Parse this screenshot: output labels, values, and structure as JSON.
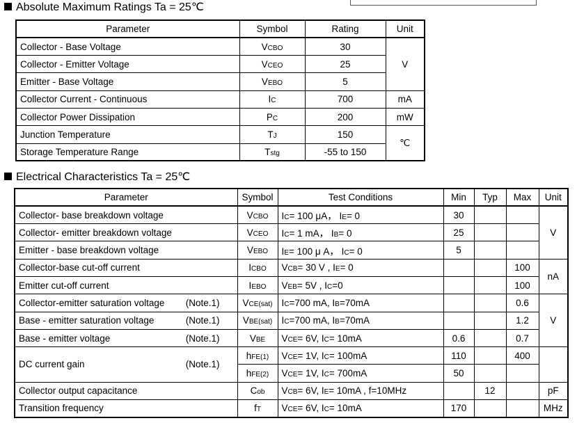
{
  "abs_max": {
    "title": "Absolute Maximum Ratings Ta = 25℃",
    "headers": [
      "Parameter",
      "Symbol",
      "Rating",
      "Unit"
    ],
    "rows": [
      {
        "parameter": "Collector - Base Voltage",
        "symbol": "V{CBO}",
        "rating": "30",
        "unit": "V"
      },
      {
        "parameter": "Collector - Emitter Voltage",
        "symbol": "V{CEO}",
        "rating": "25"
      },
      {
        "parameter": "Emitter - Base Voltage",
        "symbol": "V{EBO}",
        "rating": "5"
      },
      {
        "parameter": "Collector Current  - Continuous",
        "symbol": "I{C}",
        "rating": "700",
        "unit": "mA"
      },
      {
        "parameter": "Collector Power Dissipation",
        "symbol": "P{C}",
        "rating": "200",
        "unit": "mW"
      },
      {
        "parameter": "Junction Temperature",
        "symbol": "T{J}",
        "rating": "150",
        "unit": "℃"
      },
      {
        "parameter": "Storage Temperature Range",
        "symbol": "T{stg}",
        "rating": "-55 to 150"
      }
    ]
  },
  "elec": {
    "title": "Electrical Characteristics Ta = 25℃",
    "headers": [
      "Parameter",
      "Symbol",
      "Test Conditions",
      "Min",
      "Typ",
      "Max",
      "Unit"
    ],
    "rows": [
      {
        "parameter": "Collector- base breakdown voltage",
        "symbol": "V{CBO}",
        "cond": "I{C}= 100 μA，  I{E}= 0",
        "min": "30",
        "unit": "V"
      },
      {
        "parameter": "Collector- emitter breakdown voltage",
        "symbol": "V{CEO}",
        "cond": "I{C}= 1 mA，  I{B}= 0",
        "min": "25"
      },
      {
        "parameter": "Emitter - base breakdown voltage",
        "symbol": "V{EBO}",
        "cond": "I{E}= 100 μ A，  I{C}= 0",
        "min": "5"
      },
      {
        "parameter": "Collector-base cut-off current",
        "symbol": "I{CBO}",
        "cond": "V{CB}= 30 V , I{E}= 0",
        "max": "100",
        "unit": "nA"
      },
      {
        "parameter": "Emitter cut-off current",
        "symbol": "I{EBO}",
        "cond": "V{EB}= 5V , I{C}=0",
        "max": "100"
      },
      {
        "parameter": "Collector-emitter saturation voltage",
        "note": "(Note.1)",
        "symbol": "V{CE(sat)}",
        "cond": "I{C}=700 mA, I{B}=70mA",
        "max": "0.6",
        "unit": "V"
      },
      {
        "parameter": "Base - emitter saturation voltage",
        "note": "(Note.1)",
        "symbol": "V{BE(sat)}",
        "cond": "I{C}=700 mA, I{B}=70mA",
        "max": "1.2"
      },
      {
        "parameter": "Base - emitter voltage",
        "note": "(Note.1)",
        "symbol": "V{BE}",
        "cond": "V{CE}= 6V, I{C}= 10mA",
        "min": "0.6",
        "max": "0.7"
      },
      {
        "parameter": "DC current gain",
        "note": "(Note.1)",
        "symbol": "h{FE(1)}",
        "cond": "V{CE}= 1V, I{C}= 100mA",
        "min": "110",
        "max": "400"
      },
      {
        "symbol": "h{FE(2)}",
        "cond": "V{CE}= 1V, I{C}= 700mA",
        "min": "50"
      },
      {
        "parameter": "Collector output  capacitance",
        "symbol": "C{ob}",
        "cond": "V{CB}= 6V, I{E}= 10mA , f=10MHz",
        "typ": "12",
        "unit": "pF"
      },
      {
        "parameter": "Transition frequency",
        "symbol": "f{T}",
        "cond": "V{CE}= 6V, I{C}= 10mA",
        "min": "170",
        "unit": "MHz"
      }
    ]
  }
}
